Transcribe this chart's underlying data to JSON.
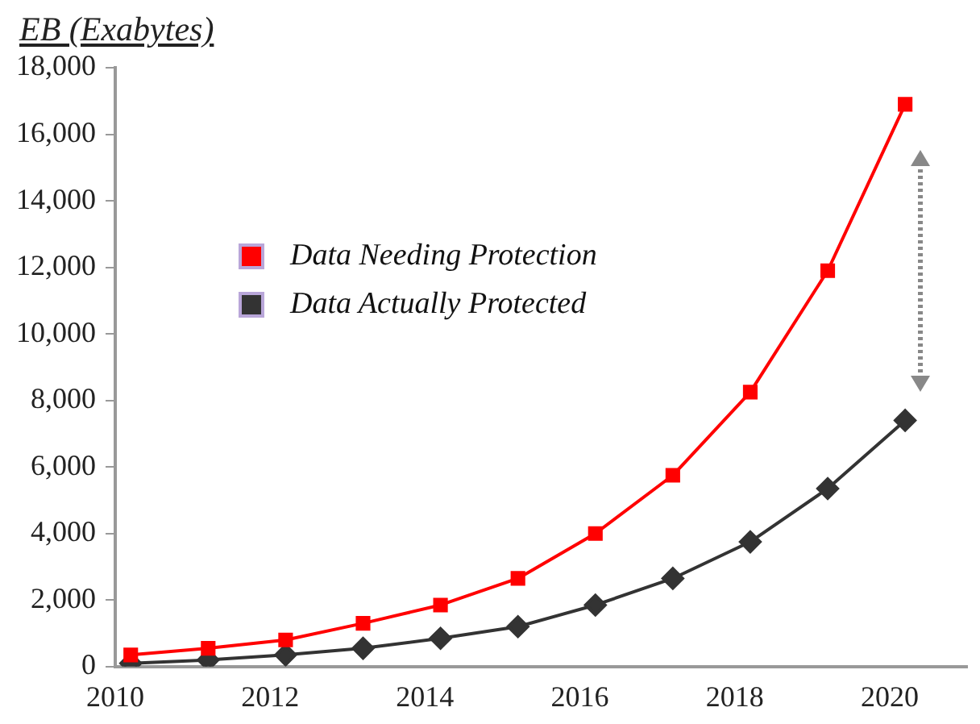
{
  "chart_data": {
    "type": "line",
    "ylabel": "EB (Exabytes)",
    "xlim": [
      2010,
      2021
    ],
    "xticks": [
      2010,
      2012,
      2014,
      2016,
      2018,
      2020
    ],
    "ylim": [
      0,
      18000
    ],
    "yticks": [
      {
        "value": 0,
        "label": "0"
      },
      {
        "value": 2000,
        "label": "2,000"
      },
      {
        "value": 4000,
        "label": "4,000"
      },
      {
        "value": 6000,
        "label": "6,000"
      },
      {
        "value": 8000,
        "label": "8,000"
      },
      {
        "value": 10000,
        "label": "10,000"
      },
      {
        "value": 12000,
        "label": "12,000"
      },
      {
        "value": 14000,
        "label": "14,000"
      },
      {
        "value": 16000,
        "label": "16,000"
      },
      {
        "value": 18000,
        "label": "18,000"
      }
    ],
    "grid": false,
    "legend": "top left",
    "line_style": "solid",
    "x": [
      2010.2,
      2011.2,
      2012.2,
      2013.2,
      2014.2,
      2015.2,
      2016.2,
      2017.2,
      2018.2,
      2019.2,
      2020.2
    ],
    "series": [
      {
        "name": "Data Needing Protection",
        "color": "#ff0000",
        "marker": "square",
        "values": [
          350,
          550,
          800,
          1300,
          1850,
          2650,
          4000,
          5750,
          8250,
          11900,
          16900
        ]
      },
      {
        "name": "Data Actually Protected",
        "color": "#333333",
        "marker": "diamond",
        "values": [
          100,
          200,
          350,
          550,
          850,
          1200,
          1850,
          2650,
          3750,
          5350,
          7400
        ]
      }
    ]
  }
}
